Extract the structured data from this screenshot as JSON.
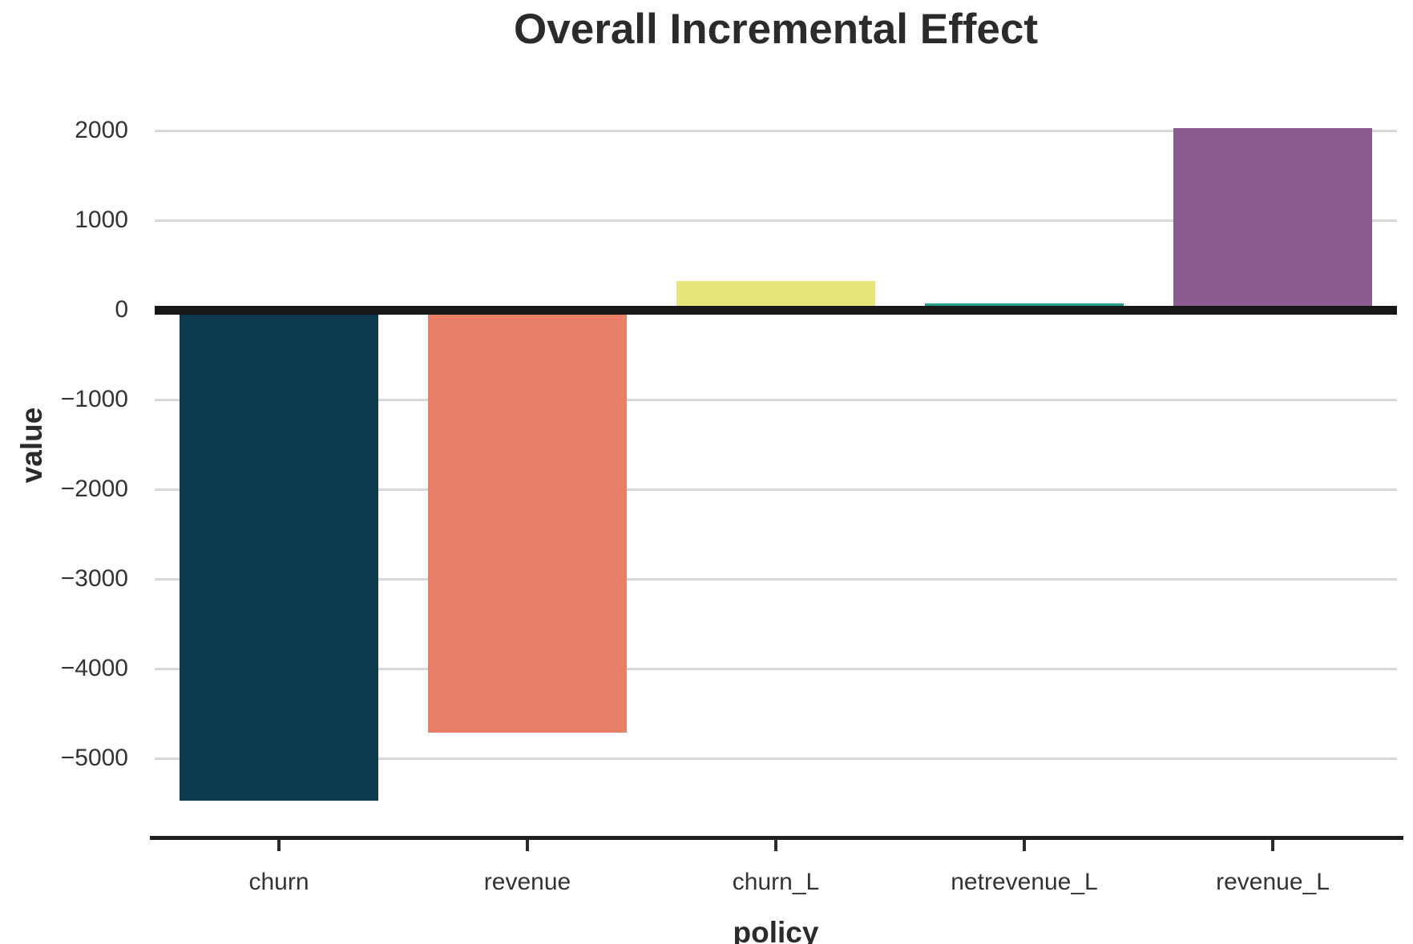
{
  "chart_data": {
    "type": "bar",
    "title": "Overall Incremental Effect",
    "xlabel": "policy",
    "ylabel": "value",
    "categories": [
      "churn",
      "revenue",
      "churn_L",
      "netrevenue_L",
      "revenue_L"
    ],
    "values": [
      -5470,
      -4710,
      320,
      70,
      2030
    ],
    "bar_colors": [
      "#0e3a4f",
      "#ea7f68",
      "#e6e57b",
      "#27a08a",
      "#8c5b92"
    ],
    "yticks": [
      2000,
      1000,
      0,
      -1000,
      -2000,
      -3000,
      -4000,
      -5000
    ],
    "ytick_labels": [
      "2000",
      "1000",
      "0",
      "−1000",
      "−2000",
      "−3000",
      "−4000",
      "−5000"
    ],
    "ylim": [
      -5880,
      2430
    ],
    "grid": "horizontal",
    "legend_position": "none",
    "zero_line": true,
    "colors": {
      "grid": "#d8d8d8",
      "axis": "#1f1f1f",
      "zero_line": "#171717",
      "tick_text": "#333333",
      "label_text": "#2b2b2b",
      "background": "#ffffff"
    }
  }
}
